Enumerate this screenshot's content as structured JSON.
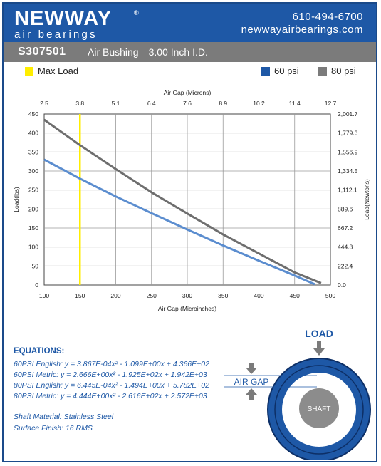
{
  "brand": {
    "logo_word": "NEWWAY",
    "logo_reg": "®",
    "logo_sub": "air bearings",
    "phone": "610-494-6700",
    "website": "newwayairbearings.com",
    "header_color": "#1e58a6"
  },
  "product": {
    "part_number": "S307501",
    "description": "Air Bushing—3.00 Inch I.D."
  },
  "legend": {
    "max_load": {
      "label": "Max Load",
      "color": "#ffee00"
    },
    "psi60": {
      "label": "60 psi",
      "color": "#1e58a6"
    },
    "psi80": {
      "label": "80 psi",
      "color": "#7b7b7b"
    }
  },
  "chart_data": {
    "type": "line",
    "xlabel": "Air Gap (Microinches)",
    "ylabel": "Load(lbs)",
    "x2label": "Air Gap (Microns)",
    "y2label": "Load(Newtons)",
    "xlim": [
      100,
      500
    ],
    "ylim": [
      0,
      450
    ],
    "x_ticks": [
      100,
      150,
      200,
      250,
      300,
      350,
      400,
      450,
      500
    ],
    "y_ticks": [
      0,
      50,
      100,
      150,
      200,
      250,
      300,
      350,
      400,
      450
    ],
    "x2_ticks": [
      "2.5",
      "3.8",
      "5.1",
      "6.4",
      "7.6",
      "8.9",
      "10.2",
      "11.4",
      "12.7"
    ],
    "y2_ticks": [
      "0.0",
      "222.4",
      "444.8",
      "667.2",
      "889.6",
      "1,112.1",
      "1,334.5",
      "1,556.9",
      "1,779.3",
      "2,001.7"
    ],
    "grid": true,
    "max_load_x": 150,
    "series": [
      {
        "name": "60 psi",
        "color": "#5b8dcf",
        "x": [
          100,
          150,
          200,
          250,
          300,
          350,
          400,
          450,
          478
        ],
        "y": [
          330,
          280,
          233,
          189,
          146,
          104,
          64,
          25,
          2
        ]
      },
      {
        "name": "80 psi",
        "color": "#6e6e6e",
        "x": [
          100,
          150,
          200,
          250,
          300,
          350,
          400,
          450,
          487
        ],
        "y": [
          435,
          368,
          305,
          244,
          188,
          133,
          83,
          33,
          5
        ]
      }
    ]
  },
  "equations": {
    "title": "EQUATIONS:",
    "lines": [
      "60PSI English:  y = 3.867E-04x² - 1.099E+00x + 4.366E+02",
      "60PSI Metric:  y = 2.666E+00x² - 1.925E+02x + 1.942E+03",
      "80PSI English:  y = 6.445E-04x² - 1.494E+00x + 5.782E+02",
      "80PSI Metric:  y = 4.444E+00x² - 2.616E+02x + 2.572E+03"
    ]
  },
  "specs": {
    "shaft_material": "Shaft Material:  Stainless Steel",
    "surface_finish": "Surface Finish:  16 RMS"
  },
  "diagram": {
    "load_label": "LOAD",
    "air_gap_label": "AIR GAP",
    "shaft_label": "SHAFT"
  }
}
